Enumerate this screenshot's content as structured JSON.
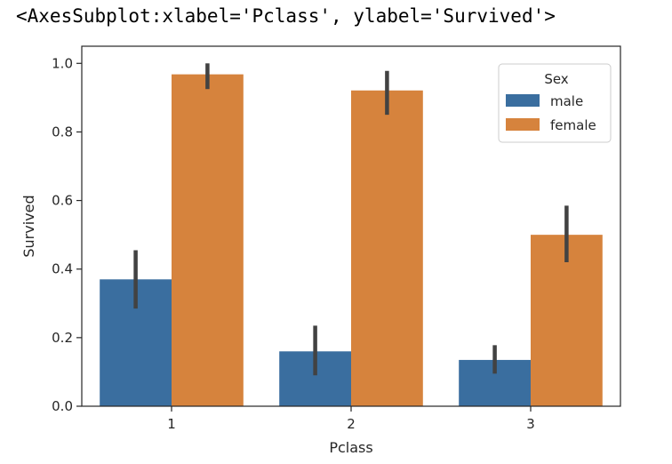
{
  "output_text": "<AxesSubplot:xlabel='Pclass', ylabel='Survived'>",
  "chart_data": {
    "type": "bar",
    "xlabel": "Pclass",
    "ylabel": "Survived",
    "categories": [
      "1",
      "2",
      "3"
    ],
    "ylim": [
      0,
      1.05
    ],
    "yticks": [
      0.0,
      0.2,
      0.4,
      0.6,
      0.8,
      1.0
    ],
    "ytick_labels": [
      "0.0",
      "0.2",
      "0.4",
      "0.6",
      "0.8",
      "1.0"
    ],
    "legend": {
      "title": "Sex",
      "placement": "top-right"
    },
    "series": [
      {
        "name": "male",
        "color": "#3a6e9f",
        "values": [
          0.37,
          0.16,
          0.135
        ],
        "ci_low": [
          0.285,
          0.09,
          0.095
        ],
        "ci_high": [
          0.455,
          0.235,
          0.178
        ]
      },
      {
        "name": "female",
        "color": "#d6833d",
        "values": [
          0.968,
          0.921,
          0.5
        ],
        "ci_low": [
          0.925,
          0.85,
          0.42
        ],
        "ci_high": [
          1.0,
          0.978,
          0.585
        ]
      }
    ],
    "errorbar_color": "#424242",
    "grid": false
  }
}
